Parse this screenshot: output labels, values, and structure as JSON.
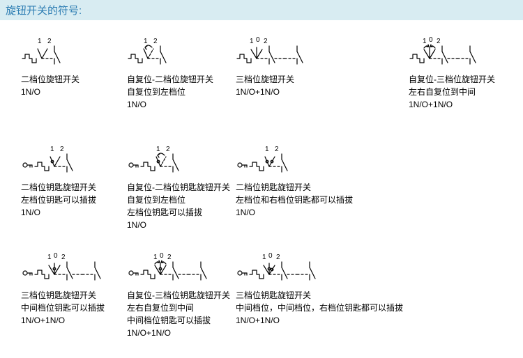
{
  "title": "旋钮开关的符号:",
  "colors": {
    "title_bg": "#d8ecf2",
    "title_text": "#2e7eb3",
    "stroke": "#000000",
    "text": "#000000",
    "bg": "#ffffff"
  },
  "stroke_width": 1.2,
  "cells": [
    {
      "id": "r1c1",
      "symbol": {
        "kind": "rotary",
        "positions": [
          1,
          2
        ],
        "self_return": false,
        "key": false,
        "contacts": 1
      },
      "lines": [
        "二档位旋钮开关",
        "1N/O"
      ]
    },
    {
      "id": "r1c2",
      "symbol": {
        "kind": "rotary",
        "positions": [
          1,
          2
        ],
        "self_return": true,
        "key": false,
        "contacts": 1
      },
      "lines": [
        "自复位-二档位旋钮开关",
        "自复位到左档位",
        "1N/O"
      ]
    },
    {
      "id": "r1c3",
      "symbol": {
        "kind": "rotary",
        "positions": [
          1,
          0,
          2
        ],
        "self_return": false,
        "key": false,
        "contacts": 2
      },
      "lines": [
        "三档位旋钮开关",
        "1N/O+1N/O"
      ]
    },
    {
      "id": "r1c4",
      "symbol": {
        "kind": "rotary",
        "positions": [
          1,
          0,
          2
        ],
        "self_return": true,
        "key": false,
        "contacts": 2
      },
      "lines": [
        "自复位-三档位旋钮开关",
        "左右自复位到中间",
        "1N/O+1N/O"
      ]
    },
    {
      "id": "r2c1",
      "symbol": {
        "kind": "rotary",
        "positions": [
          1,
          2
        ],
        "self_return": false,
        "key": true,
        "key_remove": "left",
        "contacts": 1
      },
      "lines": [
        "二档位钥匙旋钮开关",
        "左档位钥匙可以插拔",
        "1N/O"
      ]
    },
    {
      "id": "r2c2",
      "symbol": {
        "kind": "rotary",
        "positions": [
          1,
          2
        ],
        "self_return": true,
        "key": true,
        "key_remove": "left",
        "contacts": 1
      },
      "lines": [
        "自复位-二档位钥匙旋钮开关",
        "自复位到左档位",
        "左档位钥匙可以插拔",
        "1N/O"
      ]
    },
    {
      "id": "r2c3",
      "symbol": {
        "kind": "rotary",
        "positions": [
          1,
          2
        ],
        "self_return": false,
        "key": true,
        "key_remove": "both",
        "contacts": 1
      },
      "lines": [
        "二档位钥匙旋钮开关",
        "左档位和右档位钥匙都可以插拔",
        "1N/O"
      ]
    },
    null,
    {
      "id": "r3c1",
      "symbol": {
        "kind": "rotary",
        "positions": [
          1,
          0,
          2
        ],
        "self_return": false,
        "key": true,
        "key_remove": "center",
        "contacts": 2
      },
      "lines": [
        "三档位钥匙旋钮开关",
        "中间档位钥匙可以插拔",
        "1N/O+1N/O"
      ]
    },
    {
      "id": "r3c2",
      "symbol": {
        "kind": "rotary",
        "positions": [
          1,
          0,
          2
        ],
        "self_return": true,
        "key": true,
        "key_remove": "center",
        "contacts": 2
      },
      "lines": [
        "自复位-三档位钥匙旋钮开关",
        "左右自复位到中间",
        "中间档位钥匙可以插拔",
        "1N/O+1N/O"
      ]
    },
    {
      "id": "r3c3",
      "symbol": {
        "kind": "rotary",
        "positions": [
          1,
          0,
          2
        ],
        "self_return": false,
        "key": true,
        "key_remove": "center_right",
        "contacts": 2
      },
      "lines": [
        "三档位钥匙旋钮开关",
        "中间档位，中间档位，右档位钥匙都可以插拔",
        "1N/O+1N/O"
      ]
    },
    null
  ]
}
